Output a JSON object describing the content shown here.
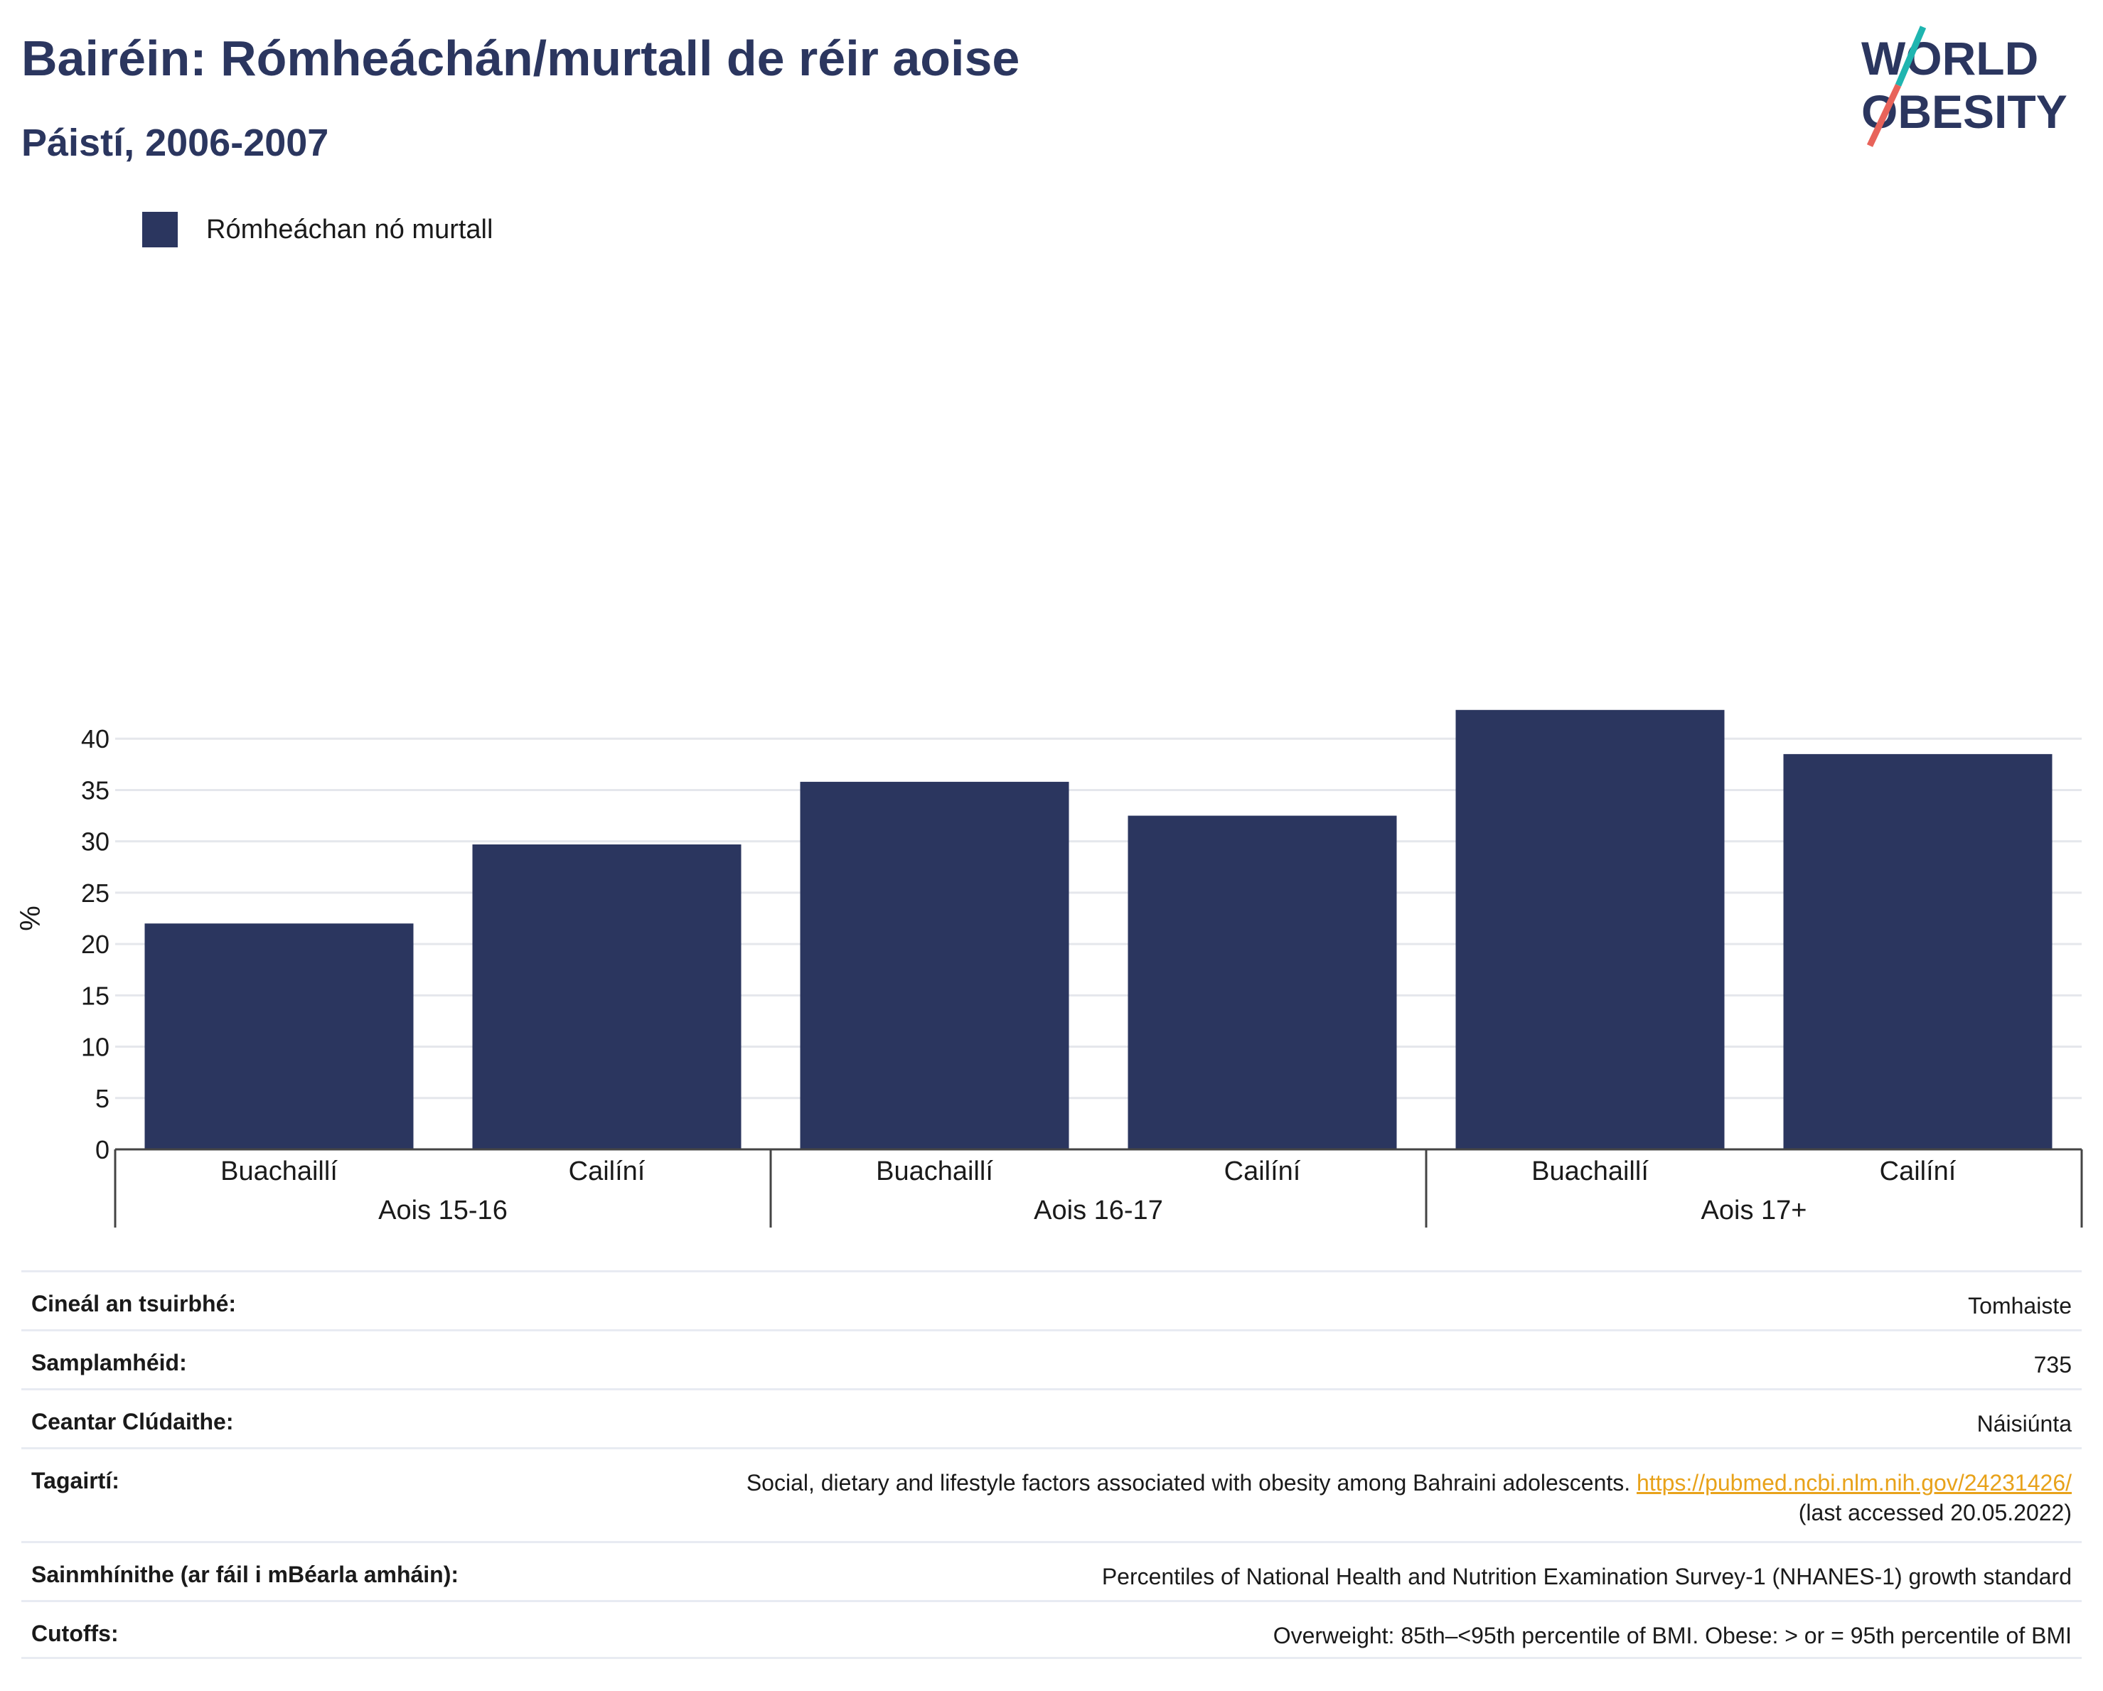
{
  "header": {
    "title": "Bairéin: Rómheáchán/murtall de réir aoise",
    "subtitle": "Páistí, 2006-2007"
  },
  "logo": {
    "line1": "WORLD",
    "line2": "OBESITY",
    "colors": [
      "#2b365f",
      "#1fb5b0",
      "#e8635a"
    ]
  },
  "legend": {
    "label": "Rómheáchan nó murtall",
    "color": "#2b365f"
  },
  "chart_data": {
    "type": "bar",
    "title": "Bairéin: Rómheáchán/murtall de réir aoise",
    "subtitle": "Páistí, 2006-2007",
    "ylabel": "%",
    "ylim": [
      0,
      45
    ],
    "yticks": [
      0,
      5,
      10,
      15,
      20,
      25,
      30,
      35,
      40
    ],
    "grid": true,
    "bar_color": "#2b365f",
    "groups": [
      {
        "label": "Aois 15-16",
        "categories": [
          "Buachaillí",
          "Cailíní"
        ],
        "values": [
          22.0,
          29.7
        ]
      },
      {
        "label": "Aois 16-17",
        "categories": [
          "Buachaillí",
          "Cailíní"
        ],
        "values": [
          35.8,
          32.5
        ]
      },
      {
        "label": "Aois 17+",
        "categories": [
          "Buachaillí",
          "Cailíní"
        ],
        "values": [
          42.8,
          38.5
        ]
      }
    ],
    "series": [
      {
        "name": "Rómheáchan nó murtall",
        "values": [
          22.0,
          29.7,
          35.8,
          32.5,
          42.8,
          38.5
        ]
      }
    ]
  },
  "meta": [
    {
      "key": "Cineál an tsuirbhé:",
      "value": "Tomhaiste"
    },
    {
      "key": "Samplamhéid:",
      "value": "735"
    },
    {
      "key": "Ceantar Clúdaithe:",
      "value": "Náisiúnta"
    },
    {
      "key": "Tagairtí:",
      "value": "Social, dietary and lifestyle factors associated with obesity among Bahraini adolescents.",
      "link": "https://pubmed.ncbi.nlm.nih.gov/24231426/",
      "value2": "(last accessed 20.05.2022)"
    },
    {
      "key": "Sainmhínithe (ar fáil i mBéarla amháin):",
      "value": "Percentiles of National Health and Nutrition Examination Survey-1 (NHANES-1) growth standard"
    },
    {
      "key": "Cutoffs:",
      "value": "Overweight: 85th–<95th percentile of BMI. Obese: > or = 95th percentile of BMI"
    }
  ]
}
